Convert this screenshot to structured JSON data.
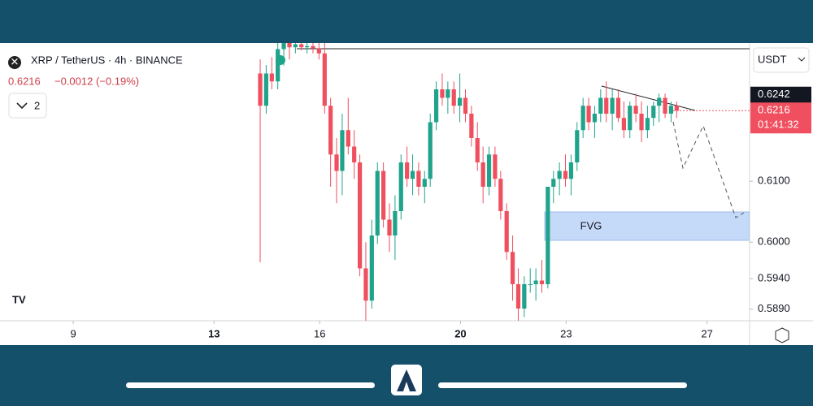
{
  "header": {
    "title": "XRP / TetherUS · 4h · BINANCE",
    "price": "0.6216",
    "change": "−0.0012 (−0.19%)",
    "indicator_count": 2,
    "currency": "USDT"
  },
  "chart_data": {
    "type": "candlestick",
    "x": [
      14.31,
      14.48,
      14.64,
      14.81,
      14.98,
      15.14,
      15.31,
      15.48,
      15.64,
      15.81,
      15.98,
      16.14,
      16.31,
      16.48,
      16.64,
      16.81,
      16.98,
      17.14,
      17.31,
      17.48,
      17.64,
      17.81,
      17.98,
      18.14,
      18.31,
      18.48,
      18.64,
      18.81,
      18.98,
      19.14,
      19.31,
      19.48,
      19.64,
      19.81,
      19.98,
      20.14,
      20.31,
      20.48,
      20.64,
      20.81,
      20.98,
      21.14,
      21.31,
      21.48,
      21.64,
      21.81,
      21.98,
      22.14,
      22.31,
      22.48,
      22.64,
      22.81,
      22.98,
      23.14,
      23.31,
      23.48,
      23.64,
      23.81,
      23.98,
      24.14,
      24.31,
      24.48,
      24.64,
      24.81,
      24.98,
      25.14,
      25.31,
      25.48,
      25.64,
      25.81,
      25.98,
      26.14
    ],
    "open": [
      0.6277,
      0.6224,
      0.6277,
      0.6264,
      0.6317,
      0.6327,
      0.632,
      0.6325,
      0.632,
      0.6322,
      0.6318,
      0.631,
      0.6224,
      0.6144,
      0.6117,
      0.6184,
      0.6157,
      0.6131,
      0.5957,
      0.5904,
      0.6011,
      0.6117,
      0.6037,
      0.6011,
      0.6051,
      0.6131,
      0.6104,
      0.6117,
      0.6091,
      0.6104,
      0.6197,
      0.6251,
      0.6237,
      0.6251,
      0.6224,
      0.6237,
      0.6211,
      0.6171,
      0.6131,
      0.6091,
      0.6144,
      0.6104,
      0.6051,
      0.5984,
      0.5931,
      0.5891,
      0.5931,
      0.5931,
      0.5937,
      0.5931,
      0.6091,
      0.6104,
      0.6117,
      0.6104,
      0.6131,
      0.6184,
      0.6224,
      0.6197,
      0.6211,
      0.6237,
      0.6211,
      0.6237,
      0.6204,
      0.6184,
      0.6224,
      0.6211,
      0.6184,
      0.6204,
      0.6224,
      0.6237,
      0.6211,
      0.6224
    ],
    "high": [
      0.63,
      0.6291,
      0.6304,
      0.6327,
      0.6327,
      0.6327,
      0.6327,
      0.6327,
      0.6327,
      0.6327,
      0.6327,
      0.6327,
      0.6237,
      0.6171,
      0.6211,
      0.6237,
      0.6184,
      0.6144,
      0.6,
      0.6037,
      0.6131,
      0.6131,
      0.6064,
      0.6077,
      0.6144,
      0.6157,
      0.6144,
      0.6131,
      0.6117,
      0.6211,
      0.6264,
      0.6277,
      0.6264,
      0.6264,
      0.6277,
      0.6251,
      0.6224,
      0.6197,
      0.6157,
      0.6157,
      0.6157,
      0.6117,
      0.6064,
      0.6011,
      0.5957,
      0.5944,
      0.5957,
      0.5957,
      0.5971,
      0.6091,
      0.6117,
      0.6131,
      0.6144,
      0.6144,
      0.6197,
      0.6237,
      0.6237,
      0.6224,
      0.6251,
      0.6264,
      0.6251,
      0.6251,
      0.6231,
      0.6231,
      0.6244,
      0.6231,
      0.6224,
      0.6231,
      0.6244,
      0.6244,
      0.6231,
      0.6231
    ],
    "low": [
      0.5967,
      0.6211,
      0.6251,
      0.6251,
      0.629,
      0.63,
      0.631,
      0.6315,
      0.631,
      0.631,
      0.63,
      0.6211,
      0.6091,
      0.6064,
      0.6077,
      0.6144,
      0.6104,
      0.5944,
      0.5871,
      0.5891,
      0.5997,
      0.6024,
      0.5984,
      0.5971,
      0.6037,
      0.6091,
      0.6077,
      0.6077,
      0.6064,
      0.6091,
      0.6184,
      0.6224,
      0.6211,
      0.6211,
      0.6197,
      0.6197,
      0.6157,
      0.6117,
      0.6064,
      0.6077,
      0.6091,
      0.6037,
      0.5971,
      0.5904,
      0.5871,
      0.5877,
      0.5917,
      0.5904,
      0.5917,
      0.5924,
      0.6064,
      0.6077,
      0.6091,
      0.6077,
      0.6117,
      0.6171,
      0.6184,
      0.6171,
      0.6197,
      0.6197,
      0.6184,
      0.6197,
      0.6171,
      0.6171,
      0.6197,
      0.6164,
      0.6171,
      0.6191,
      0.6197,
      0.6204,
      0.6197,
      0.6204
    ],
    "close": [
      0.6224,
      0.6277,
      0.6264,
      0.6317,
      0.6327,
      0.632,
      0.6325,
      0.632,
      0.6322,
      0.6318,
      0.631,
      0.6224,
      0.6144,
      0.6117,
      0.6184,
      0.6157,
      0.6131,
      0.5957,
      0.5904,
      0.6011,
      0.6117,
      0.6037,
      0.6011,
      0.6051,
      0.6131,
      0.6104,
      0.6117,
      0.6091,
      0.6104,
      0.6197,
      0.6251,
      0.6237,
      0.6251,
      0.6224,
      0.6237,
      0.6211,
      0.6171,
      0.6131,
      0.6091,
      0.6144,
      0.6104,
      0.6051,
      0.5984,
      0.5931,
      0.5891,
      0.5931,
      0.5931,
      0.5937,
      0.5931,
      0.6091,
      0.6104,
      0.6117,
      0.6104,
      0.6131,
      0.6184,
      0.6224,
      0.6197,
      0.6211,
      0.6237,
      0.6211,
      0.6237,
      0.6204,
      0.6184,
      0.6224,
      0.6211,
      0.6184,
      0.6204,
      0.6224,
      0.6237,
      0.6211,
      0.6224,
      0.6216
    ],
    "up_color": "#1fa38b",
    "down_color": "#ef4f5e",
    "xlim": [
      6.92,
      28.21
    ],
    "xticks": [
      9,
      13,
      16,
      20,
      23,
      27
    ],
    "ylim": [
      0.5871,
      0.6327
    ],
    "yticks": [
      {
        "value": 0.61,
        "label": "0.6100"
      },
      {
        "value": 0.6,
        "label": "0.6000"
      },
      {
        "value": 0.594,
        "label": "0.5940"
      },
      {
        "value": 0.589,
        "label": "0.5890"
      }
    ],
    "level": 0.6242,
    "last_price": 0.6216,
    "countdown": "01:41:32",
    "zone_label": "FVG"
  }
}
